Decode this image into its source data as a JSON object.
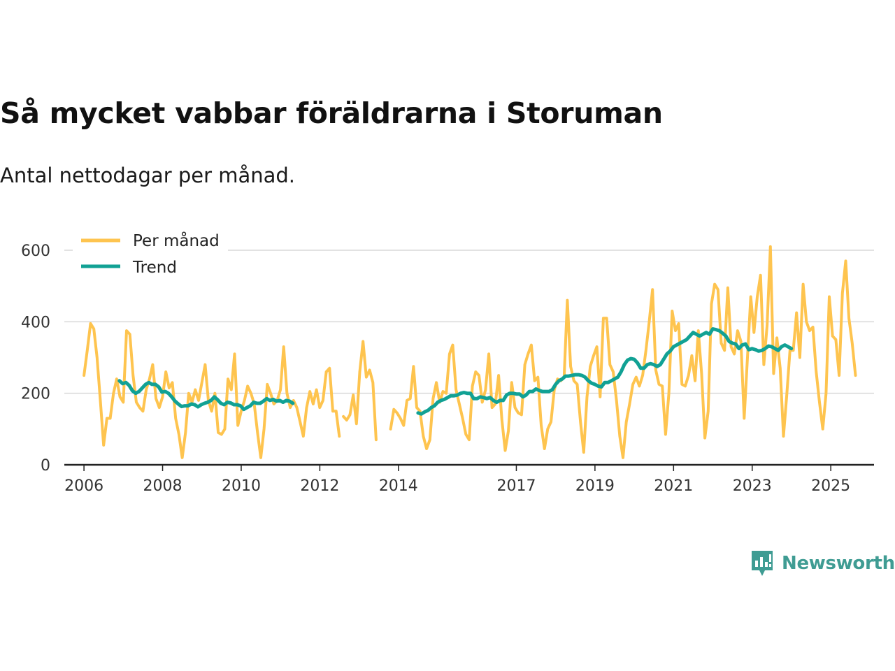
{
  "title": "Så mycket vabbar föräldrarna i Storuman",
  "subtitle": "Antal nettodagar per månad.",
  "brand": {
    "name": "Newsworthy",
    "color": "#3f9c93",
    "icon": "newsworthy-logo-icon"
  },
  "chart_data": {
    "type": "line",
    "title": "Så mycket vabbar föräldrarna i Storuman",
    "subtitle": "Antal nettodagar per månad.",
    "xlabel": "",
    "ylabel": "",
    "ylim": [
      0,
      600
    ],
    "yticks": [
      0,
      200,
      400,
      600
    ],
    "xlim": [
      2005.5,
      2026.1
    ],
    "xticks": [
      2006,
      2008,
      2010,
      2012,
      2014,
      2017,
      2019,
      2021,
      2023,
      2025
    ],
    "xtick_labels": [
      "2006",
      "2008",
      "2010",
      "2012",
      "2014",
      "2017",
      "2019",
      "2021",
      "2023",
      "2025"
    ],
    "grid": true,
    "legend_position": "top-left",
    "series": [
      {
        "name": "Per månad",
        "color": "#fec44f",
        "segments": [
          {
            "start": 2006.0,
            "step": 0.0833,
            "values": [
              250,
              320,
              395,
              380,
              300,
              180,
              55,
              130,
              130,
              200,
              240,
              190,
              175,
              375,
              365,
              250,
              175,
              160,
              150,
              210,
              240,
              280,
              185,
              160,
              190,
              260,
              215,
              230,
              130,
              85,
              20,
              90,
              200,
              175,
              210,
              180,
              230,
              280,
              180,
              150,
              200,
              90,
              85,
              100,
              240,
              210,
              310,
              110,
              150,
              180,
              220,
              200,
              170,
              90,
              20,
              100,
              225,
              200,
              170,
              180,
              210,
              330,
              200,
              160,
              180,
              160,
              120,
              80,
              160,
              205,
              170,
              210,
              160,
              180,
              260,
              270,
              150,
              150,
              80
            ]
          },
          {
            "start": 2012.6,
            "step": 0.0833,
            "values": [
              135,
              125,
              140,
              195,
              115,
              260,
              345,
              245,
              265,
              230,
              70
            ]
          },
          {
            "start": 2013.8,
            "step": 0.0833,
            "values": [
              100,
              155,
              145,
              130,
              110,
              180,
              185,
              275,
              160,
              150,
              80,
              45,
              70,
              185,
              230,
              175,
              205,
              200,
              310,
              335,
              210,
              170,
              130,
              85,
              70,
              220,
              260,
              250,
              175,
              210,
              310,
              160,
              170,
              250,
              125,
              40,
              95,
              230,
              160,
              145,
              140,
              280,
              310,
              335,
              235,
              245,
              110,
              45,
              100,
              120,
              210,
              240,
              235,
              245,
              460,
              275,
              235,
              225,
              120,
              35,
              190,
              275,
              305,
              330,
              190,
              410,
              410,
              280,
              260,
              180,
              80,
              20,
              120,
              170,
              225,
              245,
              220,
              250,
              320,
              400,
              490,
              265,
              225,
              220,
              85,
              200,
              430,
              375,
              395,
              225,
              220,
              250,
              305,
              235,
              375,
              255,
              75,
              150,
              450,
              505,
              490,
              340,
              320,
              495,
              330,
              310,
              375,
              345,
              130,
              300,
              470,
              370,
              470,
              530,
              280,
              390,
              610,
              255,
              355,
              270,
              80,
              195,
              320,
              320,
              425,
              300,
              505,
              400,
              375,
              385,
              260,
              175,
              100,
              200,
              470,
              360,
              350,
              250,
              480,
              570,
              410,
              340,
              250
            ]
          }
        ]
      },
      {
        "name": "Trend",
        "color": "#11a194",
        "segments": [
          {
            "start": 2006.9,
            "step": 0.0833,
            "values": [
              235,
              227,
              230,
              222,
              207,
              200,
              205,
              215,
              225,
              230,
              225,
              225,
              218,
              203,
              205,
              200,
              190,
              178,
              170,
              163,
              165,
              165,
              170,
              168,
              162,
              168,
              172,
              175,
              180,
              190,
              182,
              172,
              168,
              175,
              173,
              168,
              168,
              165,
              155,
              160,
              165,
              175,
              172,
              172,
              178,
              185,
              180,
              183,
              178,
              180,
              175,
              180,
              178,
              172
            ]
          },
          {
            "start": 2014.5,
            "step": 0.0833,
            "values": [
              145,
              142,
              148,
              152,
              160,
              165,
              175,
              180,
              183,
              188,
              193,
              193,
              195,
              200,
              202,
              200,
              200,
              185,
              185,
              190,
              188,
              185,
              188,
              180,
              175,
              180,
              180,
              195,
              200,
              200,
              198,
              198,
              190,
              195,
              205,
              205,
              212,
              208,
              205,
              205,
              205,
              210,
              225,
              235,
              240,
              248,
              248,
              250,
              252,
              252,
              250,
              245,
              235,
              228,
              225,
              220,
              218,
              230,
              230,
              235,
              240,
              245,
              260,
              280,
              293,
              297,
              295,
              285,
              270,
              270,
              280,
              283,
              280,
              275,
              280,
              295,
              310,
              318,
              330,
              335,
              340,
              345,
              350,
              360,
              370,
              365,
              360,
              365,
              370,
              365,
              380,
              378,
              375,
              368,
              360,
              345,
              340,
              338,
              325,
              335,
              338,
              322,
              325,
              322,
              318,
              320,
              325,
              332,
              330,
              325,
              320,
              330,
              335,
              330,
              325
            ]
          }
        ]
      }
    ]
  }
}
